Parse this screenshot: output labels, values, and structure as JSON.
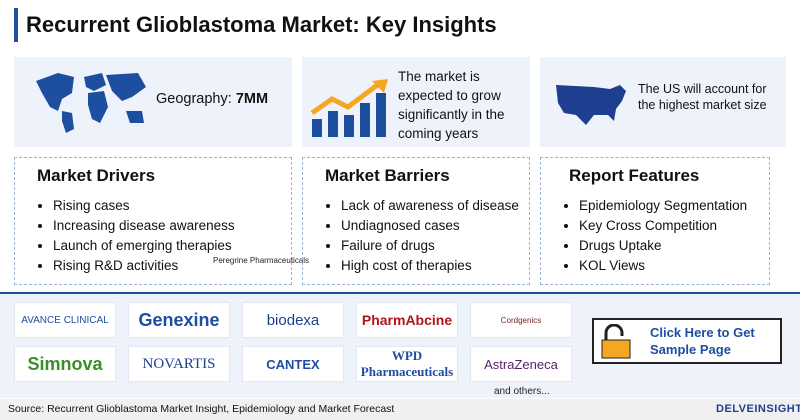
{
  "header": {
    "title": "Recurrent Glioblastoma Market: Key Insights"
  },
  "top": {
    "geography_label": "Geography:",
    "geography_value": "7MM",
    "growth": "The market is expected to grow significantly in the coming years",
    "us": "The US will account for the highest market size"
  },
  "columns": [
    {
      "heading": "Market Drivers",
      "items": [
        "Rising cases",
        "Increasing disease awareness",
        "Launch of emerging therapies",
        "Rising R&D activities"
      ]
    },
    {
      "heading": "Market Barriers",
      "items": [
        "Lack of awareness of disease",
        "Undiagnosed cases",
        "Failure of drugs",
        "High cost of therapies"
      ]
    },
    {
      "heading": "Report Features",
      "items": [
        "Epidemiology Segmentation",
        "Key Cross Competition",
        "Drugs Uptake",
        "KOL Views"
      ]
    }
  ],
  "stray_label": "Peregrine Pharmaceuticals",
  "logos": [
    "AVANCE CLINICAL",
    "Genexine",
    "biodexa",
    "PharmAbcine",
    "Cordgenics",
    "Simnova",
    "NOVARTIS",
    "CANTEX",
    "WPD Pharmaceuticals",
    "AstraZeneca"
  ],
  "logos_note": "and others...",
  "cta": "Click Here to Get Sample Page",
  "footer": {
    "source": "Source: Recurrent Glioblastoma Market Insight, Epidemiology and Market Forecast",
    "brand": "DELVEINSIGHT"
  }
}
